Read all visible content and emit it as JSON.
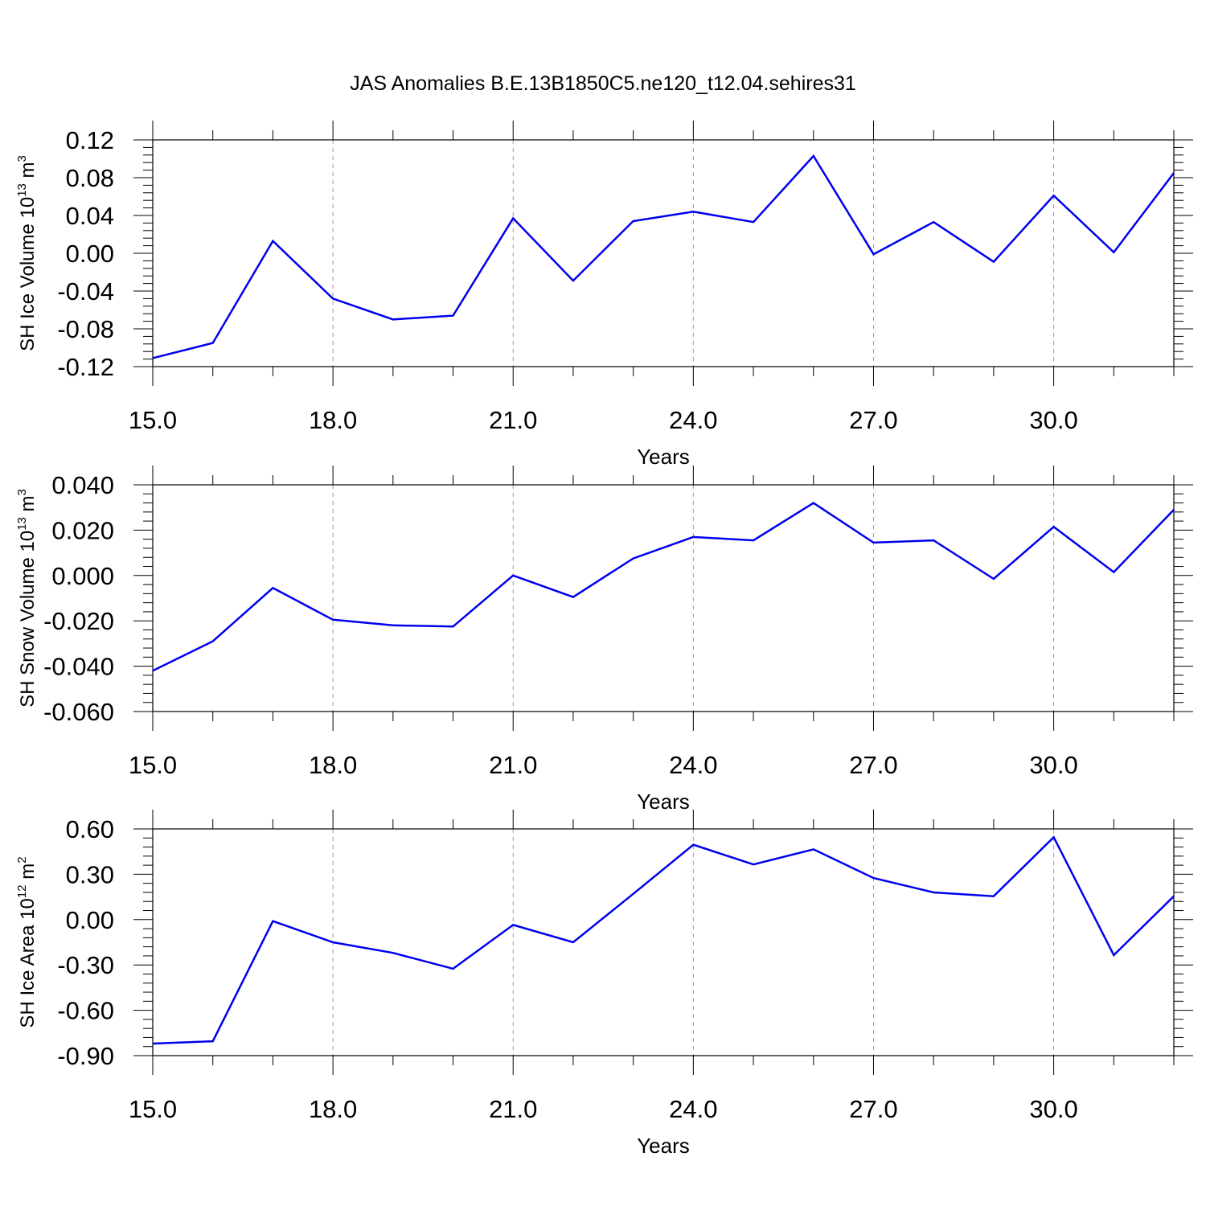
{
  "title": "JAS Anomalies B.E.13B1850C5.ne120_t12.04.sehires31",
  "chart_data": [
    {
      "type": "line",
      "ylabel": {
        "text": "SH Ice Volume 10",
        "exponent": "13",
        "unit_base": " m",
        "unit_exponent": "3"
      },
      "xlabel": "Years",
      "xlim": [
        15,
        32
      ],
      "ylim": [
        -0.12,
        0.12
      ],
      "x_ticks": [
        15,
        18,
        21,
        24,
        27,
        30
      ],
      "x_tick_labels": [
        "15.0",
        "18.0",
        "21.0",
        "24.0",
        "27.0",
        "30.0"
      ],
      "y_ticks": [
        -0.12,
        -0.08,
        -0.04,
        0.0,
        0.04,
        0.08,
        0.12
      ],
      "y_tick_labels": [
        "-0.12",
        "-0.08",
        "-0.04",
        "0.00",
        "0.04",
        "0.08",
        "0.12"
      ],
      "grid": "vertical dashed at major x ticks",
      "color": "#0000ee",
      "x": [
        15,
        16,
        17,
        18,
        19,
        20,
        21,
        22,
        23,
        24,
        25,
        26,
        27,
        28,
        29,
        30,
        31,
        32
      ],
      "values": [
        -0.111,
        -0.095,
        0.013,
        -0.048,
        -0.07,
        -0.066,
        0.037,
        -0.029,
        0.034,
        0.044,
        0.033,
        0.103,
        -0.001,
        0.033,
        -0.009,
        0.061,
        0.001,
        0.085
      ]
    },
    {
      "type": "line",
      "ylabel": {
        "text": "SH Snow Volume 10",
        "exponent": "13",
        "unit_base": " m",
        "unit_exponent": "3"
      },
      "xlabel": "Years",
      "xlim": [
        15,
        32
      ],
      "ylim": [
        -0.06,
        0.04
      ],
      "x_ticks": [
        15,
        18,
        21,
        24,
        27,
        30
      ],
      "x_tick_labels": [
        "15.0",
        "18.0",
        "21.0",
        "24.0",
        "27.0",
        "30.0"
      ],
      "y_ticks": [
        -0.06,
        -0.04,
        -0.02,
        0.0,
        0.02,
        0.04
      ],
      "y_tick_labels": [
        "-0.060",
        "-0.040",
        "-0.020",
        "0.000",
        "0.020",
        "0.040"
      ],
      "grid": "vertical dashed at major x ticks",
      "color": "#0000ee",
      "x": [
        15,
        16,
        17,
        18,
        19,
        20,
        21,
        22,
        23,
        24,
        25,
        26,
        27,
        28,
        29,
        30,
        31,
        32
      ],
      "values": [
        -0.042,
        -0.029,
        -0.0055,
        -0.0195,
        -0.022,
        -0.0225,
        0.0,
        -0.0095,
        0.0075,
        0.017,
        0.0155,
        0.032,
        0.0145,
        0.0155,
        -0.0015,
        0.0215,
        0.0015,
        0.029
      ]
    },
    {
      "type": "line",
      "ylabel": {
        "text": "SH Ice Area 10",
        "exponent": "12",
        "unit_base": " m",
        "unit_exponent": "2"
      },
      "xlabel": "Years",
      "xlim": [
        15,
        32
      ],
      "ylim": [
        -0.9,
        0.6
      ],
      "x_ticks": [
        15,
        18,
        21,
        24,
        27,
        30
      ],
      "x_tick_labels": [
        "15.0",
        "18.0",
        "21.0",
        "24.0",
        "27.0",
        "30.0"
      ],
      "y_ticks": [
        -0.9,
        -0.6,
        -0.3,
        0.0,
        0.3,
        0.6
      ],
      "y_tick_labels": [
        "-0.90",
        "-0.60",
        "-0.30",
        "0.00",
        "0.30",
        "0.60"
      ],
      "grid": "vertical dashed at major x ticks",
      "color": "#0000ee",
      "x": [
        15,
        16,
        17,
        18,
        19,
        20,
        21,
        22,
        23,
        24,
        25,
        26,
        27,
        28,
        29,
        30,
        31,
        32
      ],
      "values": [
        -0.82,
        -0.805,
        -0.01,
        -0.15,
        -0.22,
        -0.325,
        -0.035,
        -0.15,
        0.17,
        0.495,
        0.365,
        0.465,
        0.275,
        0.18,
        0.155,
        0.545,
        -0.235,
        0.155
      ]
    }
  ]
}
